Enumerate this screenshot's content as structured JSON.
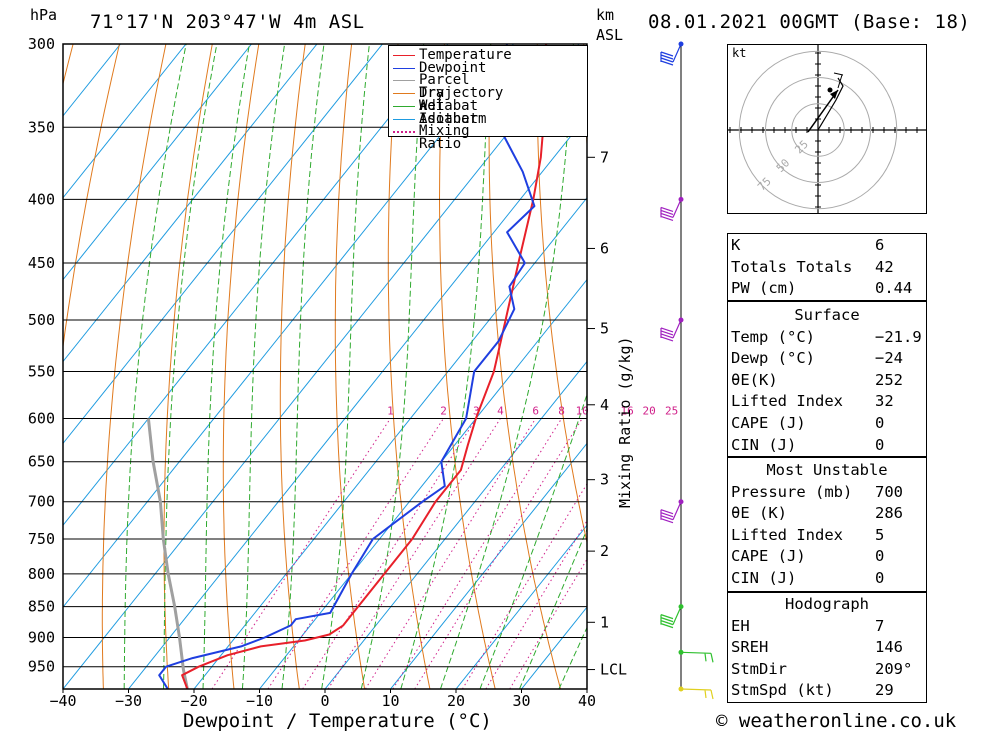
{
  "header": {
    "pressure_unit": "hPa",
    "location": "71°17'N  203°47'W  4m  ASL",
    "km_unit": "km",
    "asl": "ASL",
    "datetime": "08.01.2021  00GMT  (Base: 18)"
  },
  "chart_data": {
    "type": "skew-t",
    "title": "71°17'N 203°47'W 4m ASL",
    "xlabel": "Dewpoint / Temperature (°C)",
    "ylabel": "hPa",
    "mixing_ratio_label": "Mixing Ratio (g/kg)",
    "xlim": [
      -40,
      40
    ],
    "pressure_range": [
      300,
      990
    ],
    "pressure_ticks": [
      300,
      350,
      400,
      450,
      500,
      550,
      600,
      650,
      700,
      750,
      800,
      850,
      900,
      950
    ],
    "temperature_ticks": [
      -40,
      -30,
      -20,
      -10,
      0,
      10,
      20,
      30,
      40
    ],
    "temperature_tick_labels": [
      "−40",
      "−30",
      "−20",
      "−10",
      "0",
      "10",
      "20",
      "30",
      "40"
    ],
    "km_ticks": [
      {
        "label": "7",
        "p": 370
      },
      {
        "label": "6",
        "p": 438
      },
      {
        "label": "5",
        "p": 508
      },
      {
        "label": "4",
        "p": 585
      },
      {
        "label": "3",
        "p": 672
      },
      {
        "label": "2",
        "p": 767
      },
      {
        "label": "1",
        "p": 875
      },
      {
        "label": "LCL",
        "p": 955
      }
    ],
    "mixing_ratio_values": [
      "1",
      "2",
      "3",
      "4",
      "6",
      "8",
      "10",
      "16",
      "20",
      "25"
    ],
    "legend": [
      {
        "label": "Temperature",
        "color": "#e8202a",
        "style": "solid"
      },
      {
        "label": "Dewpoint",
        "color": "#1f3fe0",
        "style": "solid"
      },
      {
        "label": "Parcel Trajectory",
        "color": "#a0a0a0",
        "style": "solid"
      },
      {
        "label": "Dry Adiabat",
        "color": "#e07a1e",
        "style": "solid"
      },
      {
        "label": "Wet Adiabat",
        "color": "#2faa2f",
        "style": "solid"
      },
      {
        "label": "Isotherm",
        "color": "#1e9be0",
        "style": "solid"
      },
      {
        "label": "Mixing Ratio",
        "color": "#d0208a",
        "style": "dotted"
      }
    ],
    "temperature_profile": [
      {
        "p": 990,
        "t": -21
      },
      {
        "p": 965,
        "t": -23.5
      },
      {
        "p": 950,
        "t": -22
      },
      {
        "p": 930,
        "t": -19
      },
      {
        "p": 915,
        "t": -15
      },
      {
        "p": 905,
        "t": -9
      },
      {
        "p": 895,
        "t": -6
      },
      {
        "p": 880,
        "t": -5
      },
      {
        "p": 860,
        "t": -5
      },
      {
        "p": 800,
        "t": -5
      },
      {
        "p": 750,
        "t": -5
      },
      {
        "p": 700,
        "t": -6
      },
      {
        "p": 660,
        "t": -6
      },
      {
        "p": 630,
        "t": -8
      },
      {
        "p": 600,
        "t": -10
      },
      {
        "p": 550,
        "t": -13
      },
      {
        "p": 500,
        "t": -17.5
      },
      {
        "p": 450,
        "t": -22.5
      },
      {
        "p": 400,
        "t": -28
      },
      {
        "p": 370,
        "t": -32
      },
      {
        "p": 340,
        "t": -37
      },
      {
        "p": 325,
        "t": -42
      },
      {
        "p": 300,
        "t": -45
      }
    ],
    "dewpoint_profile": [
      {
        "p": 990,
        "t": -24
      },
      {
        "p": 965,
        "t": -27
      },
      {
        "p": 950,
        "t": -27
      },
      {
        "p": 935,
        "t": -24
      },
      {
        "p": 915,
        "t": -18
      },
      {
        "p": 900,
        "t": -15.5
      },
      {
        "p": 880,
        "t": -13
      },
      {
        "p": 870,
        "t": -13
      },
      {
        "p": 860,
        "t": -8.5
      },
      {
        "p": 800,
        "t": -10
      },
      {
        "p": 750,
        "t": -11
      },
      {
        "p": 700,
        "t": -8
      },
      {
        "p": 680,
        "t": -6.5
      },
      {
        "p": 650,
        "t": -10
      },
      {
        "p": 600,
        "t": -11.5
      },
      {
        "p": 550,
        "t": -16
      },
      {
        "p": 520,
        "t": -16
      },
      {
        "p": 490,
        "t": -17.5
      },
      {
        "p": 470,
        "t": -21
      },
      {
        "p": 450,
        "t": -21.5
      },
      {
        "p": 425,
        "t": -28
      },
      {
        "p": 405,
        "t": -27
      },
      {
        "p": 380,
        "t": -33
      },
      {
        "p": 350,
        "t": -42
      },
      {
        "p": 340,
        "t": -46
      },
      {
        "p": 320,
        "t": -47
      },
      {
        "p": 300,
        "t": -51
      }
    ],
    "parcel_trajectory": [
      {
        "p": 990,
        "t": -21
      },
      {
        "p": 955,
        "t": -24
      },
      {
        "p": 900,
        "t": -28.5
      },
      {
        "p": 850,
        "t": -33
      },
      {
        "p": 800,
        "t": -38
      },
      {
        "p": 750,
        "t": -43
      },
      {
        "p": 700,
        "t": -48
      },
      {
        "p": 650,
        "t": -54
      },
      {
        "p": 600,
        "t": -60
      }
    ],
    "wind_profile": [
      {
        "p": 300,
        "color": "#1f3fe0"
      },
      {
        "p": 400,
        "color": "#a020c0"
      },
      {
        "p": 500,
        "color": "#a020c0"
      },
      {
        "p": 700,
        "color": "#a020c0"
      },
      {
        "p": 850,
        "color": "#2fc02f"
      },
      {
        "p": 925,
        "color": "#2fc02f"
      },
      {
        "p": 990,
        "color": "#e0d020"
      }
    ]
  },
  "hodograph": {
    "unit": "kt",
    "rings": [
      "25",
      "50",
      "75"
    ]
  },
  "indices": {
    "k": {
      "label": "K",
      "value": "6"
    },
    "totals": {
      "label": "Totals Totals",
      "value": "42"
    },
    "pw": {
      "label": "PW (cm)",
      "value": "0.44"
    }
  },
  "surface": {
    "title": "Surface",
    "temp": {
      "label": "Temp (°C)",
      "value": "−21.9"
    },
    "dewp": {
      "label": "Dewp (°C)",
      "value": "−24"
    },
    "theta_e": {
      "label": "θE(K)",
      "value": "252"
    },
    "lifted": {
      "label": "Lifted Index",
      "value": "32"
    },
    "cape": {
      "label": "CAPE (J)",
      "value": "0"
    },
    "cin": {
      "label": "CIN (J)",
      "value": "0"
    }
  },
  "most_unstable": {
    "title": "Most Unstable",
    "pressure": {
      "label": "Pressure (mb)",
      "value": "700"
    },
    "theta_e": {
      "label": "θE (K)",
      "value": "286"
    },
    "lifted": {
      "label": "Lifted Index",
      "value": "5"
    },
    "cape": {
      "label": "CAPE (J)",
      "value": "0"
    },
    "cin": {
      "label": "CIN (J)",
      "value": "0"
    }
  },
  "hodograph_stats": {
    "title": "Hodograph",
    "eh": {
      "label": "EH",
      "value": "7"
    },
    "sreh": {
      "label": "SREH",
      "value": "146"
    },
    "stmdir": {
      "label": "StmDir",
      "value": "209°"
    },
    "stmspd": {
      "label": "StmSpd (kt)",
      "value": "29"
    }
  },
  "footer": {
    "copyright": "© weatheronline.co.uk"
  }
}
